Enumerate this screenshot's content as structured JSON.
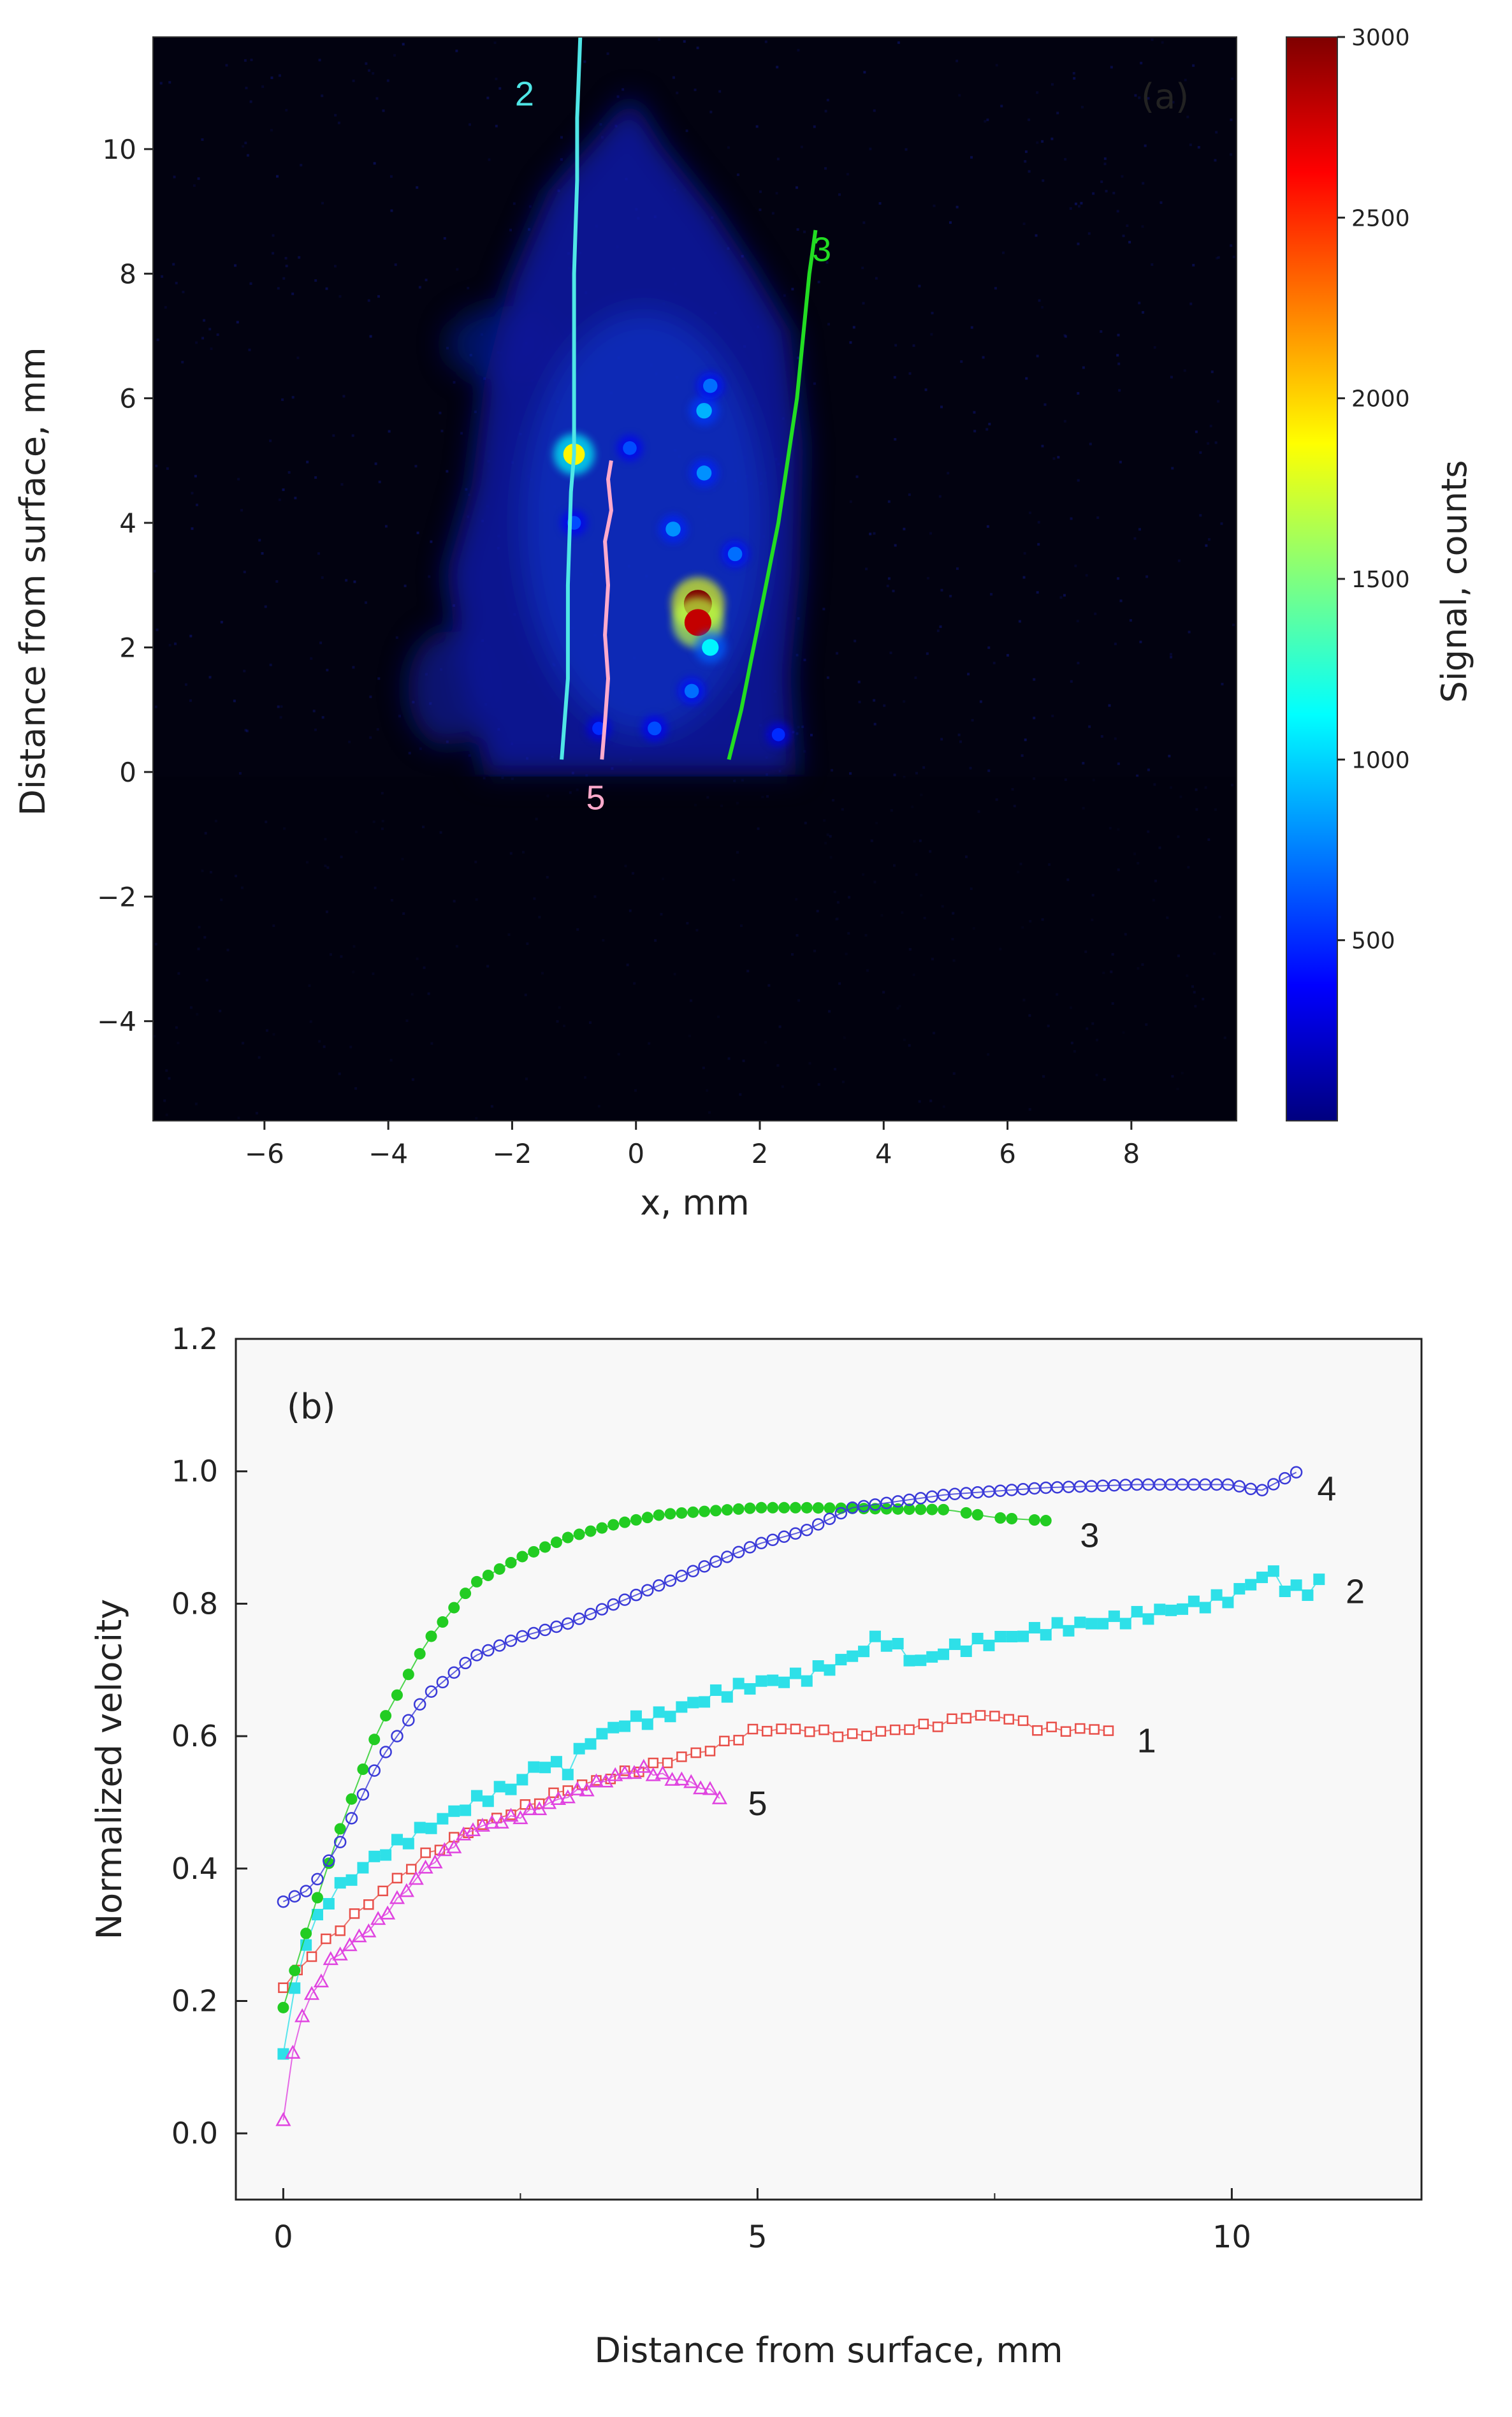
{
  "chart_data": [
    {
      "panel": "a",
      "type": "heatmap",
      "panel_label": "(a)",
      "xlabel": "x, mm",
      "ylabel": "Distance from surface, mm",
      "colorbar_label": "Signal, counts",
      "xlim": [
        -7.8,
        9.7
      ],
      "ylim": [
        -5.6,
        11.8
      ],
      "xticks": [
        -6,
        -4,
        -2,
        0,
        2,
        4,
        6,
        8
      ],
      "yticks": [
        -4,
        -2,
        0,
        2,
        4,
        6,
        8,
        10
      ],
      "xtick_labels": [
        "−6",
        "−4",
        "−2",
        "0",
        "2",
        "4",
        "6",
        "8"
      ],
      "ytick_labels": [
        "−4",
        "−2",
        "0",
        "2",
        "4",
        "6",
        "8",
        "10"
      ],
      "colorbar_range": [
        0,
        3000
      ],
      "colorbar_ticks": [
        500,
        1000,
        1500,
        2000,
        2500,
        3000
      ],
      "colorbar_tick_labels": [
        "500",
        "1000",
        "1500",
        "2000",
        "2500",
        "3000"
      ],
      "colormap_stops": [
        "#00007f",
        "#0000ff",
        "#007fff",
        "#00ffff",
        "#7fff7f",
        "#ffff00",
        "#ff7f00",
        "#ff0000",
        "#7f0000"
      ],
      "hot_spots": [
        {
          "x": 1.0,
          "y": 2.7,
          "value": 3000
        },
        {
          "x": 1.0,
          "y": 2.4,
          "value": 2800
        },
        {
          "x": -1.0,
          "y": 5.1,
          "value": 1900
        },
        {
          "x": 1.2,
          "y": 2.0,
          "value": 1100
        },
        {
          "x": 1.1,
          "y": 5.8,
          "value": 900
        },
        {
          "x": 1.1,
          "y": 4.8,
          "value": 800
        },
        {
          "x": 0.6,
          "y": 3.9,
          "value": 800
        },
        {
          "x": 1.6,
          "y": 3.5,
          "value": 700
        },
        {
          "x": 1.2,
          "y": 6.2,
          "value": 700
        },
        {
          "x": -0.1,
          "y": 5.2,
          "value": 600
        },
        {
          "x": 0.9,
          "y": 1.3,
          "value": 700
        },
        {
          "x": 0.3,
          "y": 0.7,
          "value": 600
        },
        {
          "x": -1.0,
          "y": 4.0,
          "value": 600
        },
        {
          "x": 2.3,
          "y": 0.6,
          "value": 500
        },
        {
          "x": -0.6,
          "y": 0.7,
          "value": 500
        }
      ],
      "traces": [
        {
          "name": "2",
          "color": "#4fe6e6",
          "label_x": -1.8,
          "label_y": 10.7,
          "points": [
            [
              -1.2,
              0.2
            ],
            [
              -1.1,
              1.5
            ],
            [
              -1.1,
              3.0
            ],
            [
              -1.05,
              4.5
            ],
            [
              -1.0,
              5.1
            ],
            [
              -1.0,
              6.5
            ],
            [
              -1.0,
              8.0
            ],
            [
              -0.95,
              9.5
            ],
            [
              -0.95,
              10.5
            ],
            [
              -0.9,
              11.8
            ]
          ]
        },
        {
          "name": "3",
          "color": "#22dd22",
          "label_x": 3.0,
          "label_y": 8.2,
          "points": [
            [
              1.5,
              0.2
            ],
            [
              1.7,
              1.0
            ],
            [
              1.9,
              2.0
            ],
            [
              2.1,
              3.0
            ],
            [
              2.3,
              4.0
            ],
            [
              2.45,
              5.0
            ],
            [
              2.6,
              6.0
            ],
            [
              2.7,
              7.0
            ],
            [
              2.8,
              8.0
            ],
            [
              2.9,
              8.7
            ]
          ]
        },
        {
          "name": "5",
          "color": "#ffaacc",
          "label_x": -0.65,
          "label_y": -0.6,
          "points": [
            [
              -0.55,
              0.2
            ],
            [
              -0.5,
              0.8
            ],
            [
              -0.45,
              1.5
            ],
            [
              -0.5,
              2.2
            ],
            [
              -0.45,
              3.0
            ],
            [
              -0.5,
              3.7
            ],
            [
              -0.4,
              4.2
            ],
            [
              -0.45,
              4.7
            ],
            [
              -0.4,
              5.0
            ]
          ]
        }
      ]
    },
    {
      "panel": "b",
      "type": "scatter",
      "panel_label": "(b)",
      "xlabel": "Distance from surface, mm",
      "ylabel": "Normalized velocity",
      "xlim": [
        -0.5,
        12.0
      ],
      "ylim": [
        -0.1,
        1.2
      ],
      "xticks": [
        0,
        5,
        10
      ],
      "yticks": [
        0.0,
        0.2,
        0.4,
        0.6,
        0.8,
        1.0,
        1.2
      ],
      "xtick_labels": [
        "0",
        "5",
        "10"
      ],
      "ytick_labels": [
        "0.0",
        "0.2",
        "0.4",
        "0.6",
        "0.8",
        "1.0",
        "1.2"
      ],
      "series": [
        {
          "name": "1",
          "color": "#e8504a",
          "marker": "square-open",
          "label_x": 9.0,
          "label_y": 0.595,
          "anchors": [
            [
              0,
              0.22
            ],
            [
              0.3,
              0.27
            ],
            [
              0.6,
              0.31
            ],
            [
              1.0,
              0.36
            ],
            [
              1.5,
              0.42
            ],
            [
              2.0,
              0.46
            ],
            [
              2.5,
              0.49
            ],
            [
              3.0,
              0.52
            ],
            [
              3.5,
              0.54
            ],
            [
              4.0,
              0.56
            ],
            [
              4.5,
              0.58
            ],
            [
              5.0,
              0.61
            ],
            [
              5.5,
              0.61
            ],
            [
              6.0,
              0.6
            ],
            [
              6.5,
              0.61
            ],
            [
              7.0,
              0.62
            ],
            [
              7.2,
              0.63
            ],
            [
              7.6,
              0.63
            ],
            [
              8.0,
              0.61
            ],
            [
              8.8,
              0.61
            ]
          ],
          "step": 0.15,
          "noise": 0.004
        },
        {
          "name": "2",
          "color": "#2ee0e8",
          "marker": "square-filled",
          "label_x": 11.2,
          "label_y": 0.82,
          "anchors": [
            [
              0,
              0.12
            ],
            [
              0.2,
              0.28
            ],
            [
              0.5,
              0.36
            ],
            [
              1.0,
              0.42
            ],
            [
              1.5,
              0.46
            ],
            [
              2.0,
              0.5
            ],
            [
              2.5,
              0.53
            ],
            [
              2.7,
              0.56
            ],
            [
              3.0,
              0.55
            ],
            [
              3.2,
              0.59
            ],
            [
              3.6,
              0.62
            ],
            [
              4.0,
              0.63
            ],
            [
              4.5,
              0.66
            ],
            [
              5.0,
              0.68
            ],
            [
              5.5,
              0.69
            ],
            [
              6.0,
              0.72
            ],
            [
              6.3,
              0.75
            ],
            [
              6.7,
              0.71
            ],
            [
              7.0,
              0.73
            ],
            [
              8.0,
              0.76
            ],
            [
              9.0,
              0.78
            ],
            [
              10.0,
              0.81
            ],
            [
              10.4,
              0.85
            ],
            [
              10.6,
              0.82
            ],
            [
              10.8,
              0.82
            ],
            [
              11.0,
              0.84
            ]
          ],
          "step": 0.12,
          "noise": 0.008
        },
        {
          "name": "3",
          "color": "#22cc22",
          "marker": "circle-filled",
          "label_x": 8.4,
          "label_y": 0.905,
          "anchors": [
            [
              0,
              0.19
            ],
            [
              0.3,
              0.33
            ],
            [
              0.6,
              0.46
            ],
            [
              1.0,
              0.61
            ],
            [
              1.5,
              0.74
            ],
            [
              2.0,
              0.83
            ],
            [
              2.5,
              0.87
            ],
            [
              3.0,
              0.9
            ],
            [
              3.5,
              0.92
            ],
            [
              4.0,
              0.935
            ],
            [
              4.5,
              0.94
            ],
            [
              5.0,
              0.945
            ],
            [
              5.5,
              0.945
            ],
            [
              6.0,
              0.944
            ],
            [
              6.5,
              0.943
            ],
            [
              7.0,
              0.942
            ],
            [
              7.5,
              0.93
            ],
            [
              8.1,
              0.925
            ]
          ],
          "step": 0.12,
          "noise": 0.0
        },
        {
          "name": "4",
          "color": "#3a3ad8",
          "marker": "circle-open",
          "label_x": 10.9,
          "label_y": 0.975,
          "anchors": [
            [
              0,
              0.35
            ],
            [
              0.3,
              0.37
            ],
            [
              0.6,
              0.44
            ],
            [
              1.0,
              0.56
            ],
            [
              1.5,
              0.66
            ],
            [
              2.0,
              0.72
            ],
            [
              2.5,
              0.75
            ],
            [
              3.0,
              0.77
            ],
            [
              3.5,
              0.8
            ],
            [
              4.0,
              0.83
            ],
            [
              4.5,
              0.86
            ],
            [
              5.0,
              0.89
            ],
            [
              5.5,
              0.91
            ],
            [
              6.0,
              0.945
            ],
            [
              6.5,
              0.955
            ],
            [
              7.0,
              0.965
            ],
            [
              8.0,
              0.975
            ],
            [
              9.0,
              0.98
            ],
            [
              10.0,
              0.98
            ],
            [
              10.3,
              0.97
            ],
            [
              10.7,
              1.0
            ]
          ],
          "step": 0.12,
          "noise": 0.0
        },
        {
          "name": "5",
          "color": "#e044e0",
          "marker": "triangle-open",
          "label_x": 4.9,
          "label_y": 0.5,
          "anchors": [
            [
              0,
              0.02
            ],
            [
              0.1,
              0.12
            ],
            [
              0.2,
              0.18
            ],
            [
              0.5,
              0.26
            ],
            [
              1.0,
              0.32
            ],
            [
              1.5,
              0.4
            ],
            [
              2.0,
              0.46
            ],
            [
              2.5,
              0.48
            ],
            [
              3.0,
              0.51
            ],
            [
              3.5,
              0.54
            ],
            [
              3.8,
              0.55
            ],
            [
              4.0,
              0.54
            ],
            [
              4.3,
              0.53
            ],
            [
              4.6,
              0.51
            ]
          ],
          "step": 0.1,
          "noise": 0.004
        }
      ]
    }
  ]
}
